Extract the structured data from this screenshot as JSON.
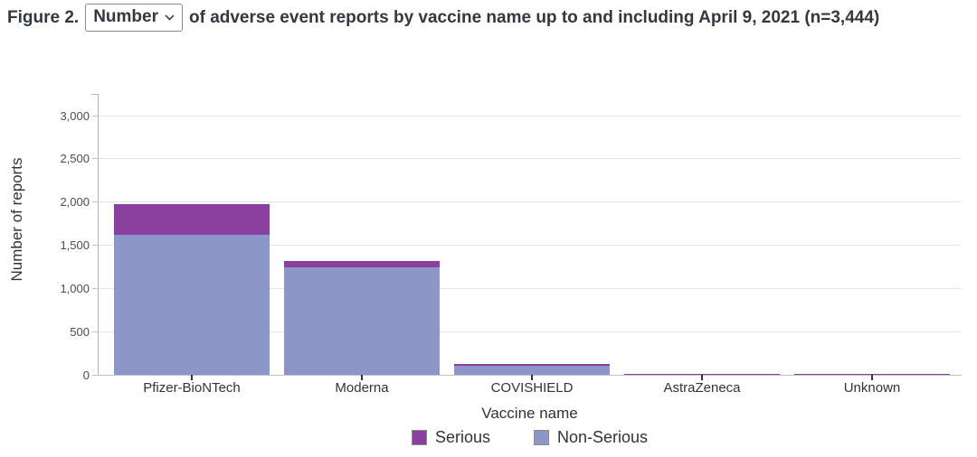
{
  "title": {
    "prefix": "Figure 2.",
    "dropdown_value": "Number",
    "suffix": "of adverse event reports by vaccine name up to and including April 9, 2021 (n=3,444)"
  },
  "icons": {
    "dropdown_chevron": "chevron-down-icon"
  },
  "chart_data": {
    "type": "bar",
    "stacked": true,
    "title": "Number of adverse event reports by vaccine name up to and including April 9, 2021 (n=3,444)",
    "total_n": "3,444",
    "xlabel": "Vaccine name",
    "ylabel": "Number of reports",
    "categories": [
      "Pfizer-BioNTech",
      "Moderna",
      "COVISHIELD",
      "AstraZeneca",
      "Unknown"
    ],
    "series": [
      {
        "name": "Serious",
        "color": "#8b3f9e",
        "values": [
          360,
          75,
          22,
          1,
          4
        ]
      },
      {
        "name": "Non-Serious",
        "color": "#8d96c9",
        "values": [
          1620,
          1245,
          100,
          9,
          8
        ]
      }
    ],
    "stack_order_bottom_to_top": [
      "Non-Serious",
      "Serious"
    ],
    "totals_by_category": [
      1980,
      1320,
      122,
      10,
      12
    ],
    "y_ticks": [
      0,
      500,
      1000,
      1500,
      2000,
      2500,
      3000
    ],
    "ylim": [
      0,
      3250
    ],
    "grid": true,
    "legend_position": "bottom",
    "colors": {
      "serious": "#8b3f9e",
      "non_serious": "#8d96c9",
      "gridline": "#e6e6e6",
      "axis": "#b3b3b3",
      "text": "#333333"
    }
  }
}
